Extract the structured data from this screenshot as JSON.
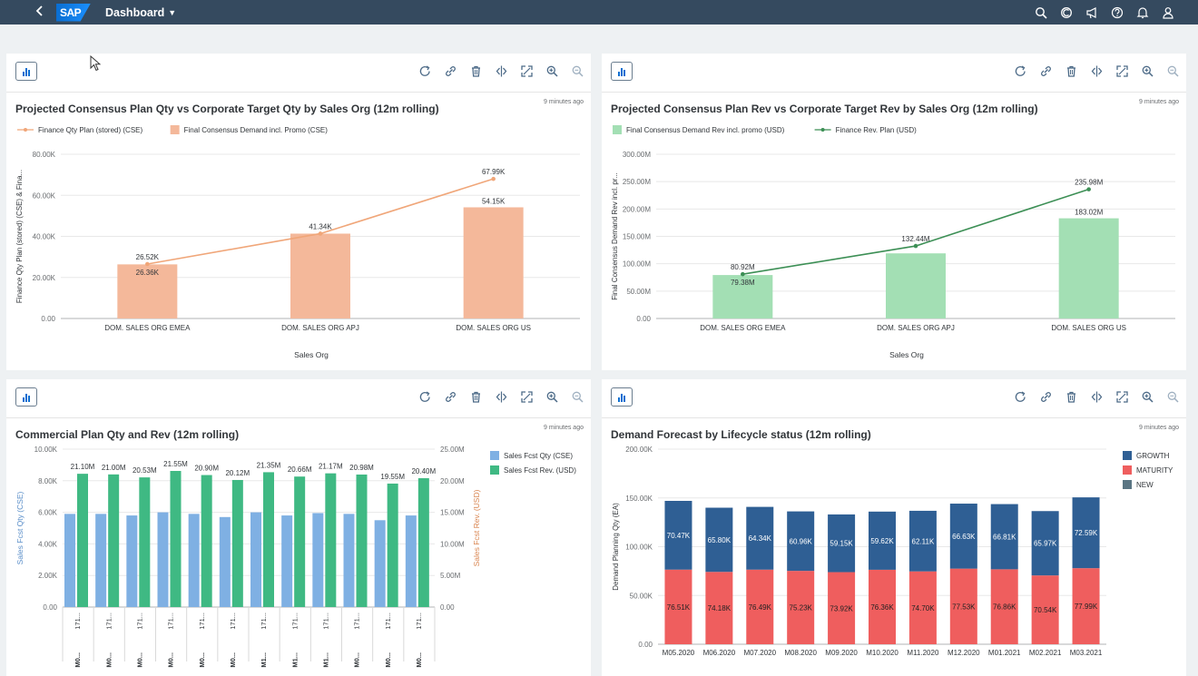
{
  "shell": {
    "back_icon": "chevron-left-icon",
    "logo": "SAP",
    "title": "Dashboard",
    "icons": [
      "search-icon",
      "copilot-icon",
      "megaphone-icon",
      "help-icon",
      "bell-icon",
      "user-icon"
    ]
  },
  "card_tools": [
    "refresh-icon",
    "link-icon",
    "delete-icon",
    "swap-icon",
    "expand-icon",
    "zoom-in-icon",
    "zoom-out-icon"
  ],
  "cards": [
    {
      "title": "Projected Consensus Plan Qty vs Corporate Target Qty by Sales Org (12m rolling)",
      "timestamp": "9 minutes ago"
    },
    {
      "title": "Projected Consensus Plan Rev vs Corporate Target Rev by Sales Org (12m rolling)",
      "timestamp": "9 minutes ago"
    },
    {
      "title": "Commercial Plan Qty and Rev (12m rolling)",
      "timestamp": "9 minutes ago"
    },
    {
      "title": "Demand Forecast by Lifecycle status (12m rolling)",
      "timestamp": "9 minutes ago"
    }
  ],
  "chart_data": [
    {
      "type": "bar",
      "categories": [
        "DOM. SALES ORG EMEA",
        "DOM. SALES ORG APJ",
        "DOM. SALES ORG US"
      ],
      "series": [
        {
          "name": "Finance Qty Plan (stored) (CSE)",
          "kind": "line",
          "values": [
            26520,
            41340,
            67990
          ],
          "labels": [
            "26.52K",
            "41.34K",
            "67.99K"
          ],
          "color": "#f0a679"
        },
        {
          "name": "Final Consensus Demand incl. Promo (CSE)",
          "kind": "bar",
          "values": [
            26360,
            41340,
            54150
          ],
          "labels": [
            "26.36K",
            "",
            "54.15K"
          ],
          "color": "#f4b89a"
        }
      ],
      "xlabel": "Sales Org",
      "ylabel": "Finance Qty Plan (stored) (CSE) & Fina...",
      "yticks": [
        "0.00",
        "20.00K",
        "40.00K",
        "60.00K",
        "80.00K"
      ],
      "ylim": [
        0,
        80000
      ],
      "legend_position": "top-left"
    },
    {
      "type": "bar",
      "categories": [
        "DOM. SALES ORG EMEA",
        "DOM. SALES ORG APJ",
        "DOM. SALES ORG US"
      ],
      "series": [
        {
          "name": "Final Consensus Demand Rev incl. promo (USD)",
          "kind": "bar",
          "values": [
            79.38,
            119,
            183.02
          ],
          "labels": [
            "79.38M",
            "",
            "183.02M"
          ],
          "color": "#a3dfb4"
        },
        {
          "name": "Finance Rev. Plan (USD)",
          "kind": "line",
          "values": [
            80.92,
            132.44,
            235.98
          ],
          "labels": [
            "80.92M",
            "132.44M",
            "235.98M"
          ],
          "color": "#3c8f55"
        }
      ],
      "xlabel": "Sales Org",
      "ylabel": "Final Consensus Demand Rev incl. pr...",
      "yticks": [
        "0.00",
        "50.00M",
        "100.00M",
        "150.00M",
        "200.00M",
        "250.00M",
        "300.00M"
      ],
      "ylim": [
        0,
        300
      ],
      "legend_position": "top-left"
    },
    {
      "type": "bar",
      "categories": [
        "M0... 171...",
        "M0... 171...",
        "M0... 171...",
        "M0... 171...",
        "M0... 171...",
        "M0... 171...",
        "M1... 171...",
        "M1... 171...",
        "M1... 171...",
        "M0... 171...",
        "M0... 171...",
        "M0... 171..."
      ],
      "category_top": [
        "171...",
        "171...",
        "171...",
        "171...",
        "171...",
        "171...",
        "171...",
        "171...",
        "171...",
        "171...",
        "171...",
        "171..."
      ],
      "category_bottom": [
        "M0...",
        "M0...",
        "M0...",
        "M0...",
        "M0...",
        "M0...",
        "M1...",
        "M1...",
        "M1...",
        "M0...",
        "M0...",
        "M0..."
      ],
      "series": [
        {
          "name": "Sales Fcst Qty (CSE)",
          "axis": "left",
          "values": [
            5.9,
            5.9,
            5.8,
            6.0,
            5.9,
            5.7,
            6.0,
            5.8,
            5.95,
            5.9,
            5.5,
            5.8
          ],
          "color": "#7fb0e3"
        },
        {
          "name": "Sales Fcst Rev. (USD)",
          "axis": "right",
          "values": [
            21.1,
            21.0,
            20.53,
            21.55,
            20.9,
            20.12,
            21.35,
            20.66,
            21.17,
            20.98,
            19.55,
            20.4
          ],
          "labels": [
            "21.10M",
            "21.00M",
            "20.53M",
            "21.55M",
            "20.90M",
            "20.12M",
            "21.35M",
            "20.66M",
            "21.17M",
            "20.98M",
            "19.55M",
            "20.40M"
          ],
          "color": "#3fb983"
        }
      ],
      "ylabel_left": "Sales Fcst Qty (CSE)",
      "ylabel_right": "Sales Fcst Rev. (USD)",
      "yticks_left": [
        "0.00",
        "2.00K",
        "4.00K",
        "6.00K",
        "8.00K",
        "10.00K"
      ],
      "yticks_right": [
        "0.00",
        "5.00M",
        "10.00M",
        "15.00M",
        "20.00M",
        "25.00M"
      ],
      "ylim_left": [
        0,
        10
      ],
      "ylim_right": [
        0,
        25
      ],
      "legend_position": "top-right"
    },
    {
      "type": "bar",
      "stacked": true,
      "categories": [
        "M05.2020",
        "M06.2020",
        "M07.2020",
        "M08.2020",
        "M09.2020",
        "M10.2020",
        "M11.2020",
        "M12.2020",
        "M01.2021",
        "M02.2021",
        "M03.2021"
      ],
      "series": [
        {
          "name": "GROWTH",
          "values": [
            70.47,
            65.8,
            64.34,
            60.96,
            59.15,
            59.62,
            62.11,
            66.63,
            66.81,
            65.97,
            72.59
          ],
          "labels": [
            "70.47K",
            "65.80K",
            "64.34K",
            "60.96K",
            "59.15K",
            "59.62K",
            "62.11K",
            "66.63K",
            "66.81K",
            "65.97K",
            "72.59K"
          ],
          "color": "#2f5f94"
        },
        {
          "name": "MATURITY",
          "values": [
            76.51,
            74.18,
            76.49,
            75.23,
            73.92,
            76.36,
            74.7,
            77.53,
            76.86,
            70.54,
            77.99
          ],
          "labels": [
            "76.51K",
            "74.18K",
            "76.49K",
            "75.23K",
            "73.92K",
            "76.36K",
            "74.70K",
            "77.53K",
            "76.86K",
            "70.54K",
            "77.99K"
          ],
          "color": "#ef5e5e"
        },
        {
          "name": "NEW",
          "values": [
            0,
            0,
            0,
            0,
            0,
            0,
            0,
            0,
            0,
            0,
            0
          ],
          "color": "#5a7583"
        }
      ],
      "ylabel": "Demand Planning Qty (EA)",
      "yticks": [
        "0.00",
        "50.00K",
        "100.00K",
        "150.00K",
        "200.00K"
      ],
      "ylim": [
        0,
        200
      ],
      "legend_position": "top-right"
    }
  ]
}
